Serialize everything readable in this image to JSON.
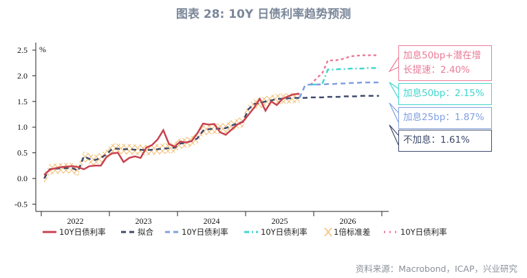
{
  "title": "图表 28: 10Y 日债利率趋势预测",
  "source": "资料来源：Macrobond，ICAP，兴业研究",
  "colors": {
    "actual": "#c8414f",
    "fit": "#3d4a6b",
    "s25": "#7f9fe0",
    "s50": "#3fd6cc",
    "s50plus": "#ea7a96",
    "band": "#f2bd72"
  },
  "callouts": [
    {
      "text": "加息50bp+潜在增长提速：2.40%",
      "color": "#ea7a96"
    },
    {
      "text": "加息50bp：2.15%",
      "color": "#3fd6cc"
    },
    {
      "text": "加息25bp：1.87%",
      "color": "#7f9fe0"
    },
    {
      "text": "不加息：1.61%",
      "color": "#3d4a6b"
    }
  ],
  "chart_data": {
    "type": "line",
    "title": "图表 28: 10Y 日债利率趋势预测",
    "ylabel": "%",
    "ylim": [
      -0.6,
      2.6
    ],
    "yticks": [
      "2.5",
      "2.0",
      "1.5",
      "1.0",
      "0.5",
      "0.0",
      "-0.5"
    ],
    "xticks": [
      "2022",
      "2023",
      "2024",
      "2025",
      "2026"
    ],
    "x_start": "2022-01",
    "x_end": "2026-12",
    "frequency": "monthly",
    "series": [
      {
        "name": "10Y日债利率",
        "key": "actual",
        "style": "solid",
        "start": "2022-01",
        "values": [
          0.07,
          0.17,
          0.2,
          0.22,
          0.23,
          0.24,
          0.22,
          0.18,
          0.24,
          0.25,
          0.25,
          0.42,
          0.49,
          0.5,
          0.32,
          0.4,
          0.43,
          0.4,
          0.6,
          0.65,
          0.76,
          0.94,
          0.67,
          0.62,
          0.72,
          0.7,
          0.73,
          0.88,
          1.07,
          1.05,
          1.06,
          0.9,
          0.85,
          0.95,
          1.05,
          1.1,
          1.24,
          1.38,
          1.55,
          1.32,
          1.5,
          1.43,
          1.55,
          1.6,
          1.64,
          1.65
        ]
      },
      {
        "name": "拟合",
        "key": "fit",
        "style": "dash",
        "start": "2022-01",
        "values": [
          0.0,
          0.18,
          0.19,
          0.2,
          0.2,
          0.2,
          0.15,
          0.43,
          0.38,
          0.36,
          0.4,
          0.47,
          0.58,
          0.58,
          0.57,
          0.57,
          0.56,
          0.56,
          0.55,
          0.56,
          0.57,
          0.58,
          0.59,
          0.6,
          0.68,
          0.7,
          0.73,
          0.78,
          0.93,
          0.96,
          0.97,
          0.97,
          0.98,
          1.03,
          1.07,
          1.1,
          1.35,
          1.45,
          1.47,
          1.5,
          1.52,
          1.55,
          1.55,
          1.56,
          1.57,
          1.57,
          1.57,
          1.58,
          1.58,
          1.58,
          1.59,
          1.59,
          1.59,
          1.6,
          1.6,
          1.6,
          1.61,
          1.61,
          1.61,
          1.61
        ]
      },
      {
        "name": "10Y日债利率",
        "key": "s25",
        "style": "dash",
        "start": "2025-10",
        "values": [
          1.57,
          1.82,
          1.83,
          1.83,
          1.83,
          1.84,
          1.84,
          1.85,
          1.85,
          1.86,
          1.86,
          1.87,
          1.87,
          1.87,
          1.87
        ]
      },
      {
        "name": "10Y日债利率",
        "key": "s50",
        "style": "dashdot",
        "start": "2025-12",
        "values": [
          1.83,
          1.83,
          1.84,
          2.12,
          2.12,
          2.13,
          2.13,
          2.14,
          2.14,
          2.14,
          2.15,
          2.15,
          2.15
        ]
      },
      {
        "name": "10Y日债利率",
        "key": "s50plus",
        "style": "dot",
        "start": "2025-12",
        "values": [
          1.83,
          1.95,
          2.05,
          2.3,
          2.3,
          2.31,
          2.34,
          2.38,
          2.39,
          2.4,
          2.4,
          2.4,
          2.4
        ]
      }
    ],
    "band": {
      "name": "1倍标准差",
      "halfwidth": 0.1,
      "around": "fit",
      "start": "2022-01",
      "end": "2025-10"
    },
    "legend": [
      "10Y日债利率",
      "拟合",
      "10Y日债利率",
      "10Y日债利率",
      "1倍标准差",
      "10Y日债利率"
    ],
    "legend_position": "bottom"
  }
}
